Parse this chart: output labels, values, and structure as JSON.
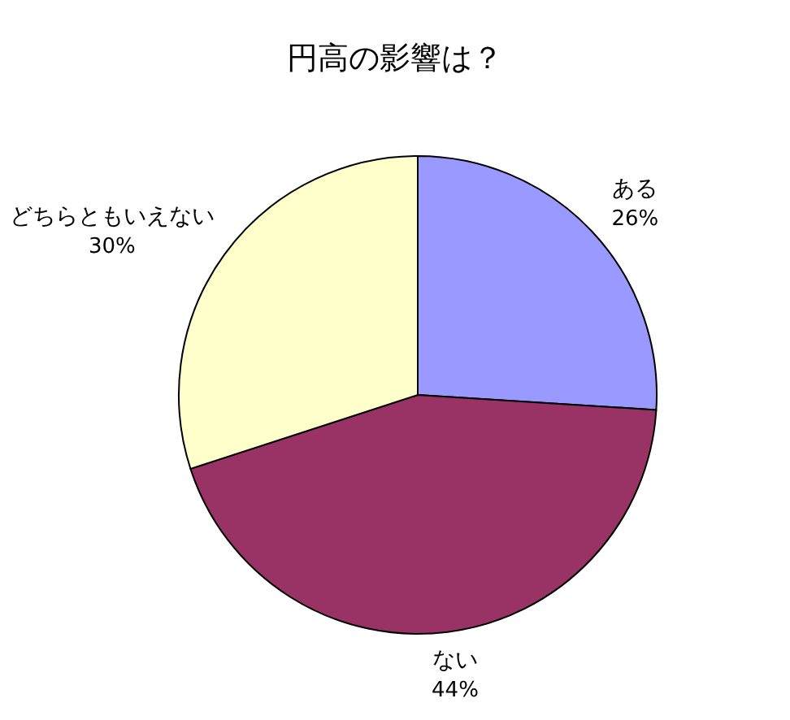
{
  "chart_data": {
    "type": "pie",
    "title": "円高の影響は？",
    "categories": [
      "ある",
      "ない",
      "どちらともいえない"
    ],
    "values": [
      26,
      44,
      30
    ],
    "colors": [
      "#9999ff",
      "#993366",
      "#ffffcc"
    ],
    "value_labels": [
      "26%",
      "44%",
      "30%"
    ]
  }
}
